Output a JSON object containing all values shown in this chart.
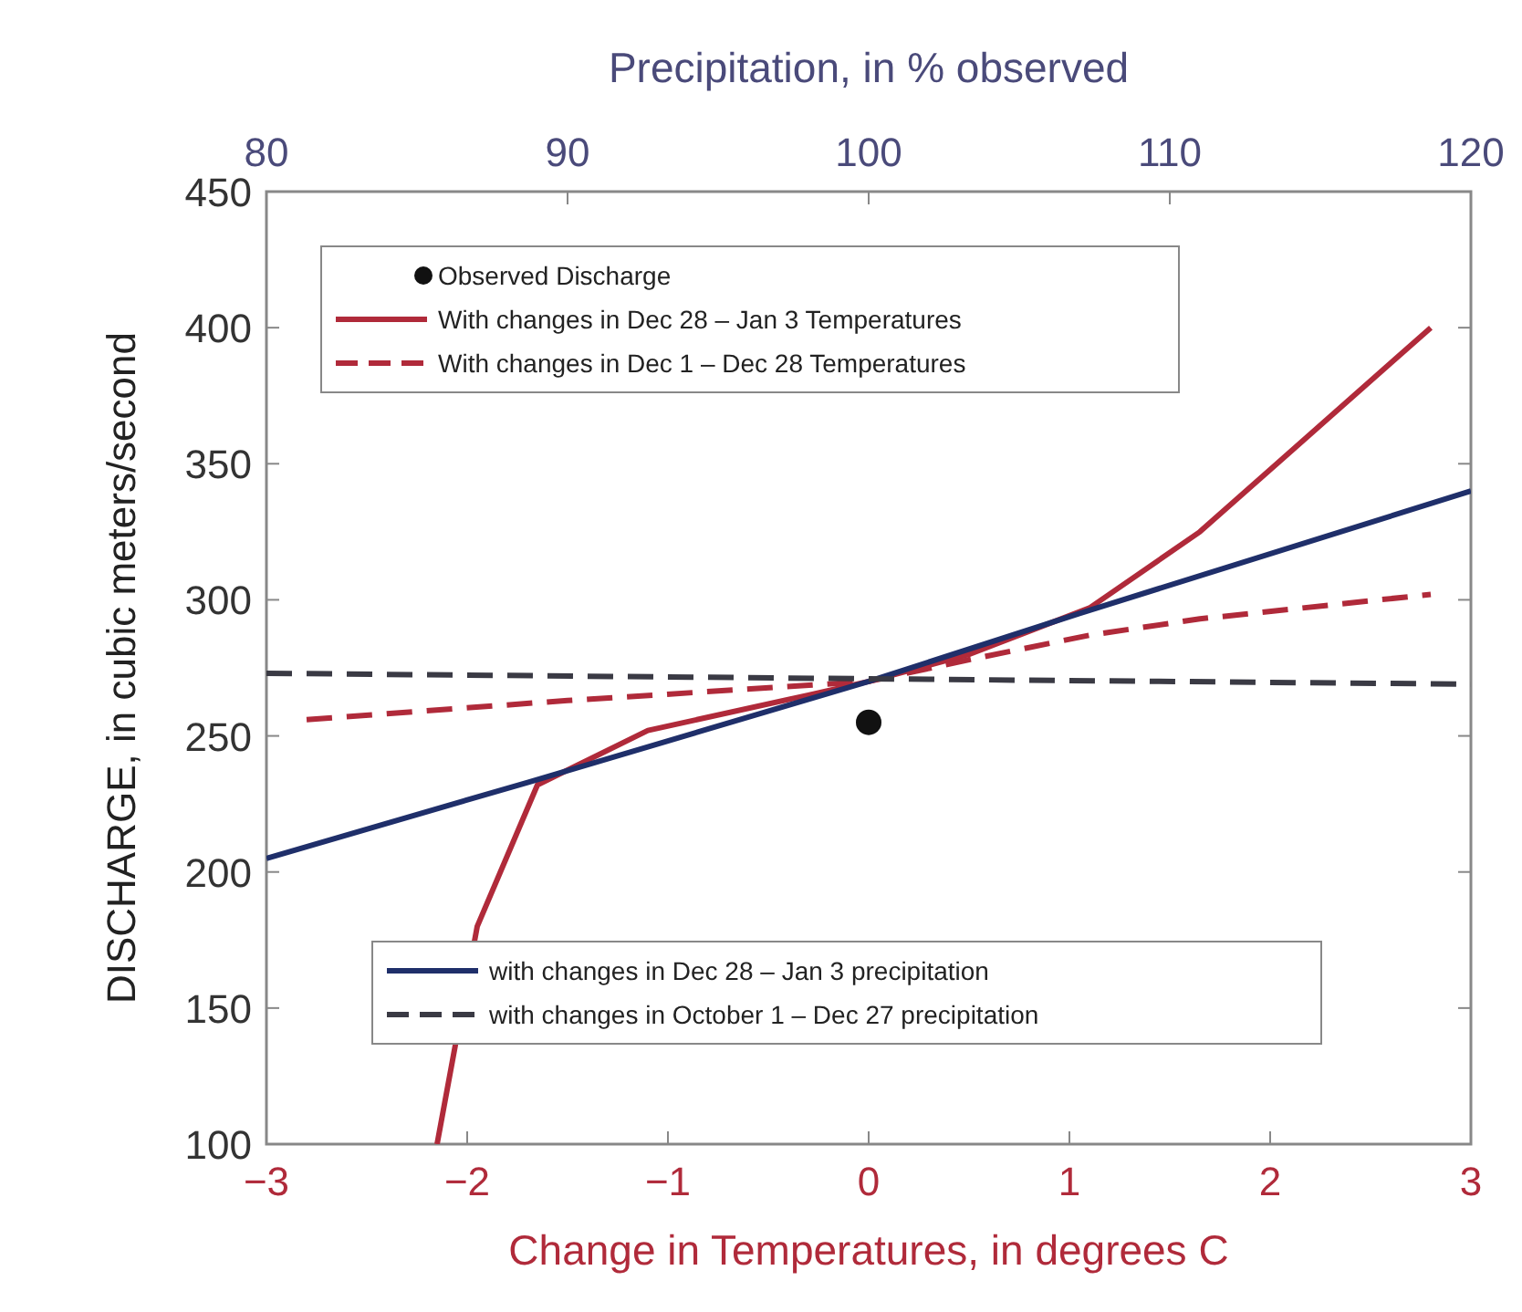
{
  "chart_data": {
    "type": "line",
    "x2label": "Precipitation, in % observed",
    "xlabel": "Change in Temperatures, in degrees C",
    "ylabel": "DISCHARGE, in cubic meters/second",
    "xlim": [
      -3,
      3
    ],
    "xticks": [
      {
        "value": -3,
        "label": "−3"
      },
      {
        "value": -2,
        "label": "−2"
      },
      {
        "value": -1,
        "label": "−1"
      },
      0,
      1,
      2,
      3
    ],
    "x2lim": [
      80,
      120
    ],
    "x2ticks": [
      80,
      90,
      100,
      110,
      120
    ],
    "ylim": [
      100,
      450
    ],
    "yticks": [
      100,
      150,
      200,
      250,
      300,
      350,
      400,
      450
    ],
    "grid": false,
    "legend": "top left",
    "series": [
      {
        "name": "Observed Discharge",
        "type": "scatter",
        "marker": "circle",
        "color": "#111111",
        "x": [
          0
        ],
        "values": [
          255
        ]
      },
      {
        "name": "With changes in Dec 28 – Jan 3 Temperatures",
        "color": "#b02a3a",
        "line_style": "solid",
        "x": [
          -2.15,
          -1.95,
          -1.65,
          -1.1,
          -0.3,
          0,
          0.5,
          1.1,
          1.65,
          2.8
        ],
        "values": [
          100,
          180,
          232,
          252,
          265,
          270,
          280,
          297,
          325,
          400
        ]
      },
      {
        "name": "With changes in Dec 1 – Dec 28 Temperatures",
        "color": "#b02a3a",
        "line_style": "dashed",
        "x": [
          -2.8,
          -1.5,
          0,
          0.5,
          1.1,
          1.65,
          2.8
        ],
        "values": [
          256,
          263,
          270,
          278,
          287,
          293,
          302
        ]
      },
      {
        "name": "with changes in Dec 28 – Jan 3 precipitation",
        "color": "#1f2f6a",
        "line_style": "solid",
        "axis": "x2",
        "x": [
          80,
          88.7,
          100,
          107,
          120
        ],
        "values": [
          205,
          233,
          270,
          295,
          340
        ]
      },
      {
        "name": "with changes in October 1 – Dec 27 precipitation",
        "color": "#3a3a44",
        "line_style": "dashed",
        "axis": "x2",
        "x": [
          80,
          100,
          120
        ],
        "values": [
          273,
          271,
          269
        ]
      }
    ]
  }
}
